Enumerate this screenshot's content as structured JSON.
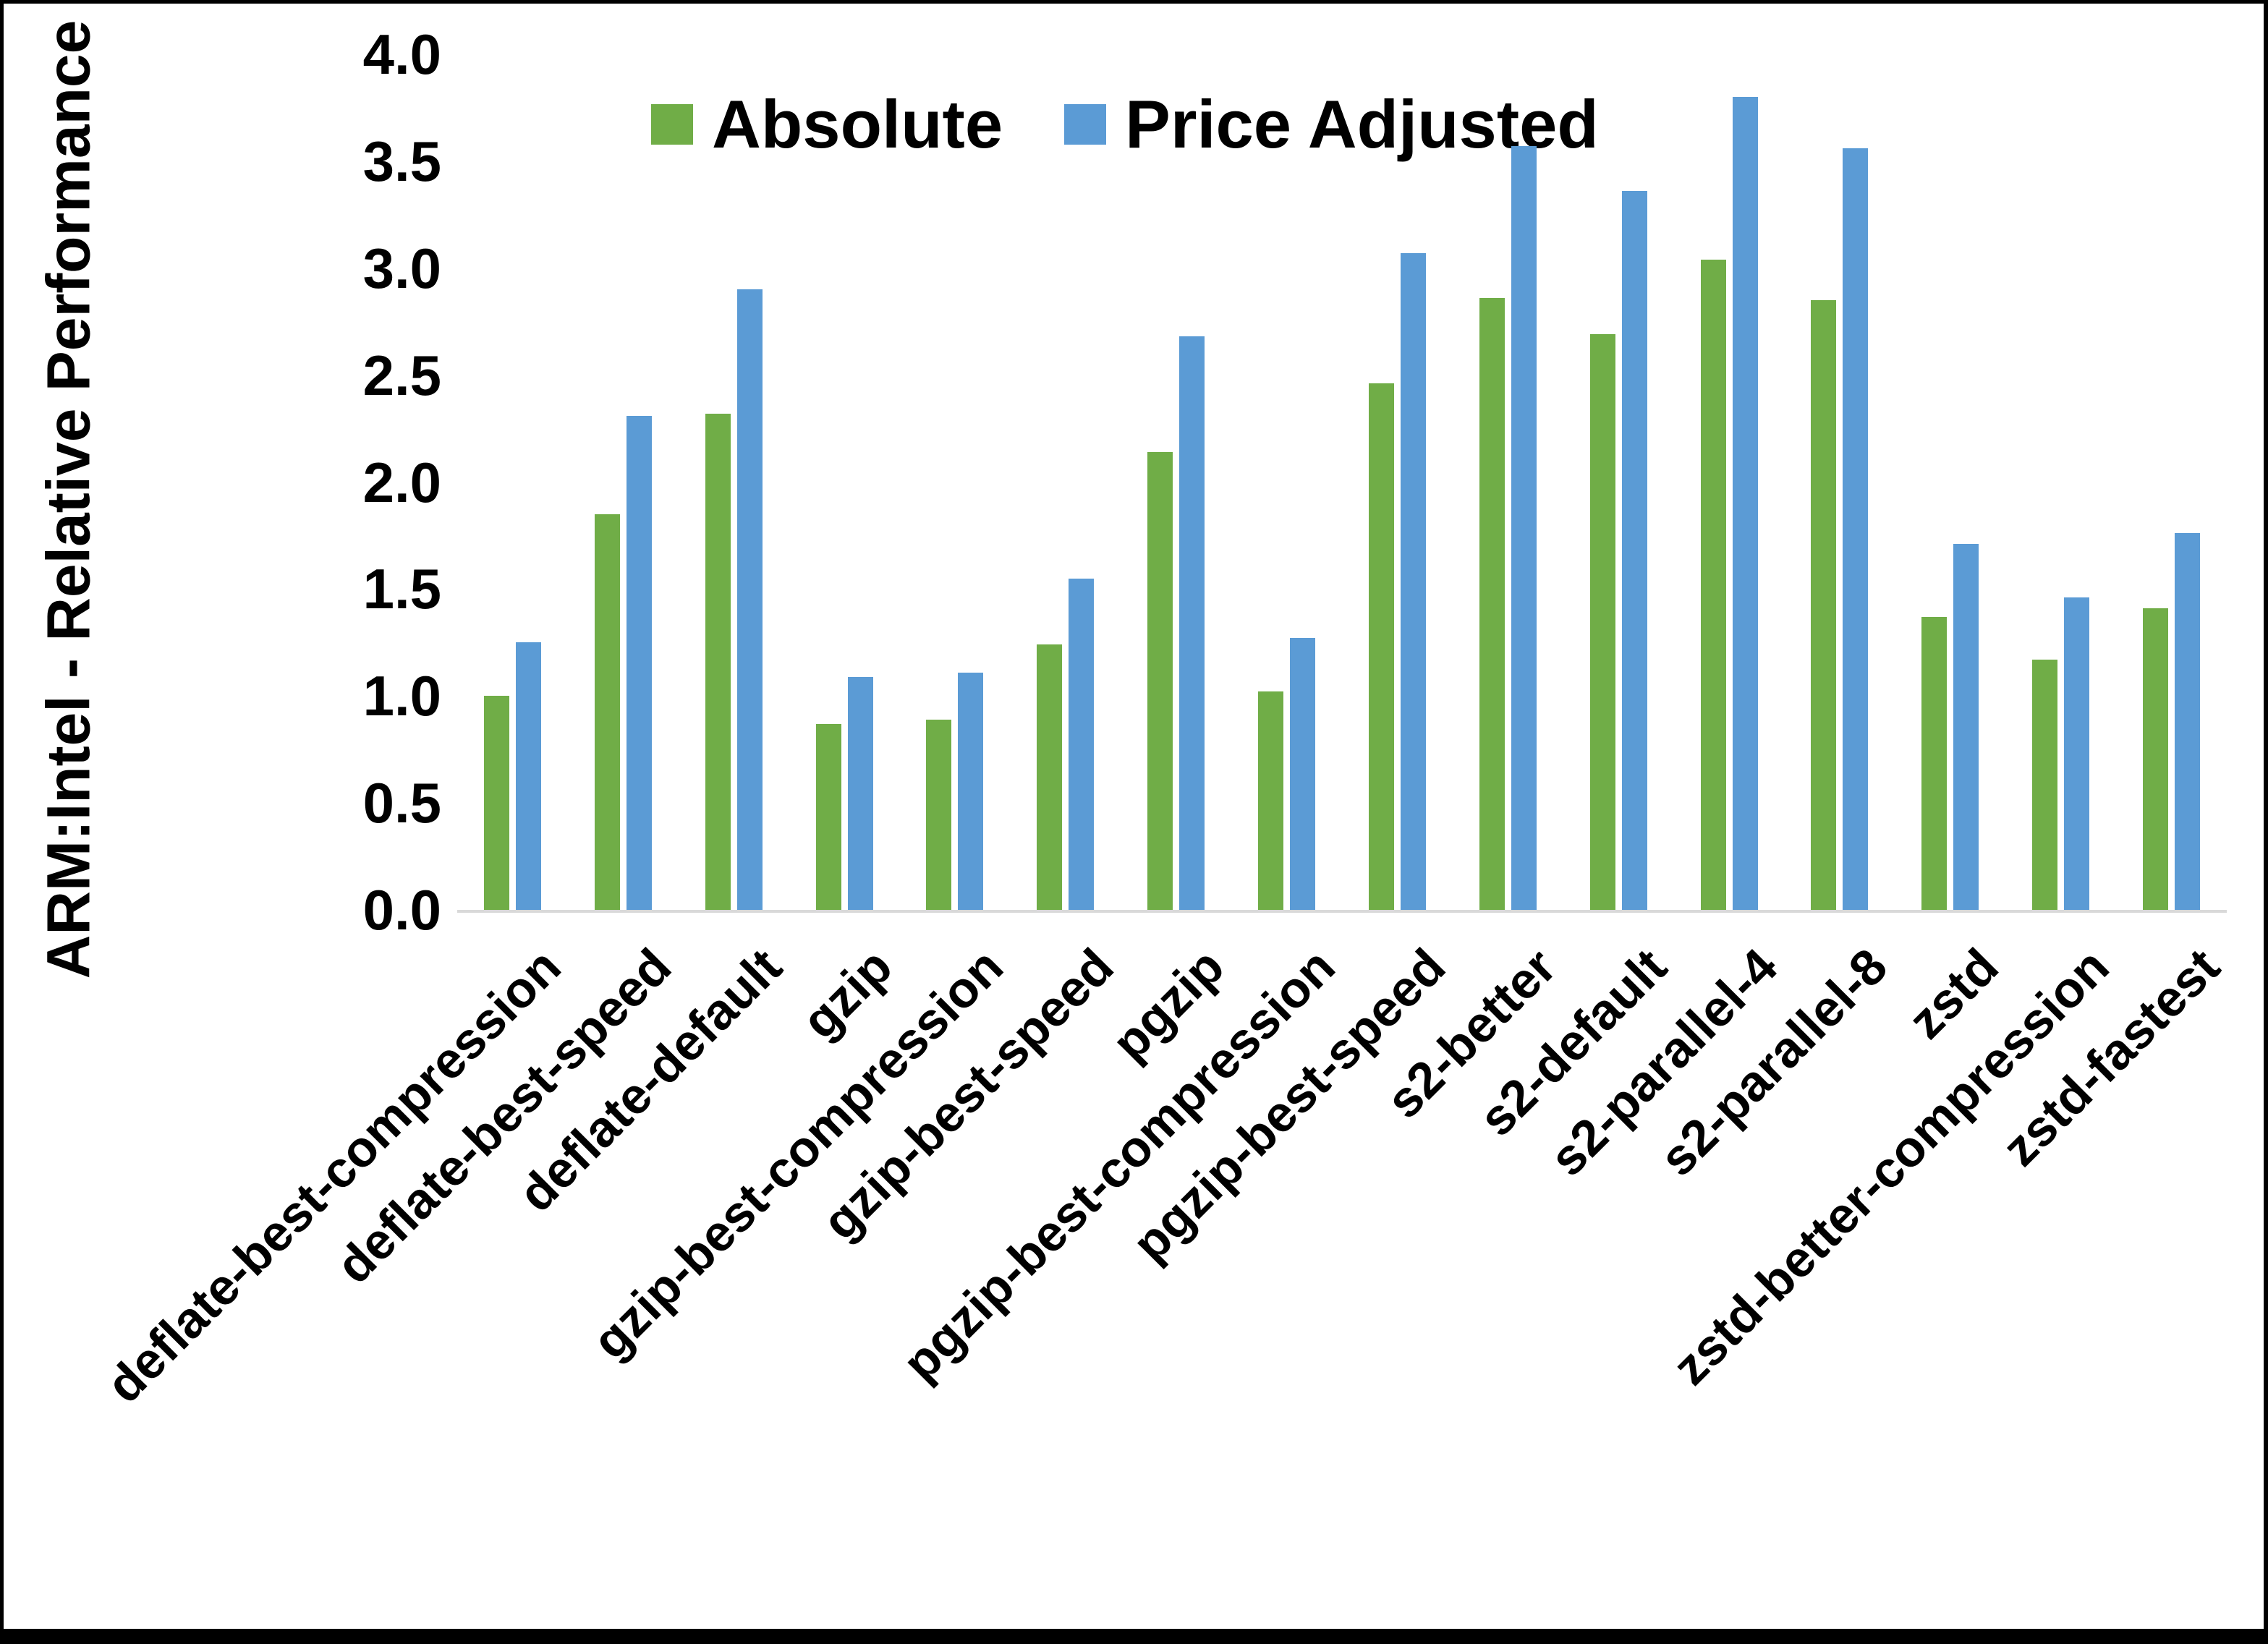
{
  "chart_data": {
    "type": "bar",
    "title": "",
    "ylabel": "ARM:Intel - Relative Performance",
    "xlabel": "",
    "categories": [
      "deflate-best-compression",
      "deflate-best-speed",
      "deflate-default",
      "gzip",
      "gzip-best-compression",
      "gzip-best-speed",
      "pgzip",
      "pgzip-best-compression",
      "pgzip-best-speed",
      "s2-better",
      "s2-default",
      "s2-parallel-4",
      "s2-parallel-8",
      "zstd",
      "zstd-better-compression",
      "zstd-fastest"
    ],
    "series": [
      {
        "name": "Absolute",
        "color": "#70AD47",
        "values": [
          1.0,
          1.85,
          2.32,
          0.87,
          0.89,
          1.24,
          2.14,
          1.02,
          2.46,
          2.86,
          2.69,
          3.04,
          2.85,
          1.37,
          1.17,
          1.41
        ]
      },
      {
        "name": "Price Adjusted",
        "color": "#5B9BD5",
        "values": [
          1.25,
          2.31,
          2.9,
          1.09,
          1.11,
          1.55,
          2.68,
          1.27,
          3.07,
          3.57,
          3.36,
          3.8,
          3.56,
          1.71,
          1.46,
          1.76
        ]
      }
    ],
    "ylim": [
      0.0,
      4.0
    ],
    "ytick_labels": [
      "0.0",
      "0.5",
      "1.0",
      "1.5",
      "2.0",
      "2.5",
      "3.0",
      "3.5",
      "4.0"
    ],
    "grid": false,
    "legend_position": "top-center",
    "axis_line_color": "#D9D9D9",
    "frame_color": "#000000",
    "background": "#FFFFFF"
  }
}
